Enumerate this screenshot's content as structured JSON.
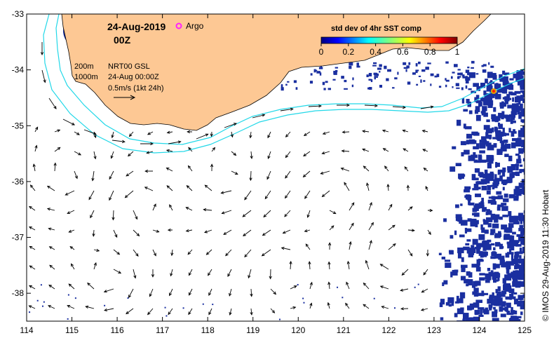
{
  "map": {
    "date_title": "24-Aug-2019",
    "time_title": "00Z",
    "argo_label": "Argo",
    "lon_ticks": [
      "114",
      "115",
      "116",
      "117",
      "118",
      "119",
      "120",
      "121",
      "122",
      "123",
      "124",
      "125"
    ],
    "lat_ticks": [
      "-33",
      "-34",
      "-35",
      "-36",
      "-37",
      "-38"
    ],
    "lon_range": [
      114,
      125
    ],
    "lat_range": [
      -38.5,
      -33
    ]
  },
  "legend": {
    "contour_200": "200m",
    "contour_1000": "1000m",
    "source": "NRT00 GSL",
    "valid_time": "24-Aug 00:00Z",
    "scale_label": "0.5m/s (1kt 24h)"
  },
  "colorbar": {
    "title": "std dev of 4hr SST comp",
    "ticks": [
      "0",
      "0.2",
      "0.4",
      "0.6",
      "0.8",
      "1"
    ],
    "range": [
      0,
      1
    ]
  },
  "credit": "© IMOS 29-Aug-2019 11:30 Hobart",
  "colors": {
    "land": "#fdc894",
    "contour": "#22d8e8",
    "sst_low": "#1a2fa0",
    "argo": "#ff22ff"
  }
}
